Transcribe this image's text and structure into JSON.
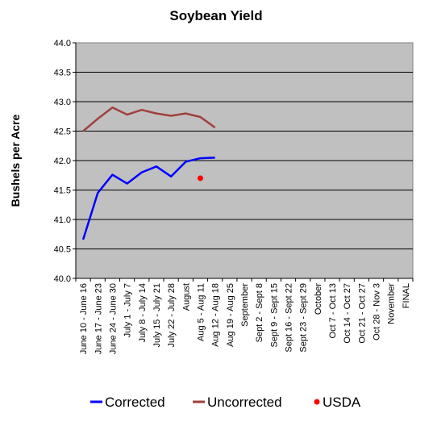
{
  "chart_data": {
    "type": "line",
    "title": "Soybean Yield",
    "xlabel": "",
    "ylabel": "Bushels per Acre",
    "ylim": [
      40.0,
      44.0
    ],
    "y_ticks": [
      "40.0",
      "40.5",
      "41.0",
      "41.5",
      "42.0",
      "42.5",
      "43.0",
      "43.5",
      "44.0"
    ],
    "grid": true,
    "legend_position": "bottom",
    "background_color": "#c0c0c0",
    "categories": [
      "June 10 - June 16",
      "June 17 - June 23",
      "June 24 - June 30",
      "July 1 - July 7",
      "July 8 - July 14",
      "July 15 - July 21",
      "July 22 - July 28",
      "August",
      "Aug 5 - Aug 11",
      "Aug 12 - Aug 18",
      "Aug 19 - Aug 25",
      "September",
      "Sept 2 - Sept 8",
      "Sept 9 - Sept 15",
      "Sept 16 - Sept 22",
      "Sept 23 - Sept 29",
      "October",
      "Oct 7 - Oct 13",
      "Oct 14 - Oct 27",
      "Oct 21 - Oct 27",
      "Oct 28 - Nov 3",
      "November",
      "FINAL"
    ],
    "series": [
      {
        "name": "Corrected",
        "type": "line",
        "color": "#0000ff",
        "values": [
          40.66,
          41.45,
          41.76,
          41.61,
          41.8,
          41.9,
          41.73,
          41.98,
          42.04,
          42.05,
          null,
          null,
          null,
          null,
          null,
          null,
          null,
          null,
          null,
          null,
          null,
          null,
          null
        ]
      },
      {
        "name": "Uncorrected",
        "type": "line",
        "color": "#a0413c",
        "values": [
          42.5,
          42.71,
          42.9,
          42.78,
          42.86,
          42.8,
          42.76,
          42.8,
          42.74,
          42.56,
          null,
          null,
          null,
          null,
          null,
          null,
          null,
          null,
          null,
          null,
          null,
          null,
          null
        ]
      },
      {
        "name": "USDA",
        "type": "point",
        "color": "#ff0000",
        "values": [
          null,
          null,
          null,
          null,
          null,
          null,
          null,
          null,
          41.7,
          null,
          null,
          null,
          null,
          null,
          null,
          null,
          null,
          null,
          null,
          null,
          null,
          null,
          null
        ]
      }
    ]
  }
}
